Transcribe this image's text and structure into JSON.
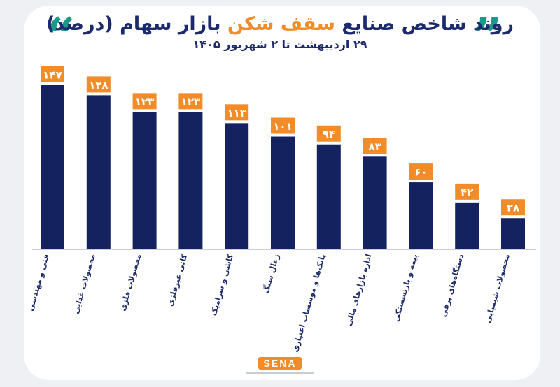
{
  "header": {
    "title_part1": "روند شاخص صنایع ",
    "title_highlight": "سقف شکن",
    "title_part2": " بازار سهام (درصد)",
    "subtitle": "۲۹ اردیبهشت تا ۲ شهریور ۱۴۰۵",
    "quote_open": "“",
    "quote_close": "”"
  },
  "logo": {
    "text": "SENA"
  },
  "colors": {
    "bar": "#14235f",
    "label_bg": "#f28c28",
    "accent": "#f28c28",
    "quote": "#1a9a8a",
    "title": "#1d2a6b"
  },
  "chart_data": {
    "type": "bar",
    "title": "روند شاخص صنایع سقف شکن بازار سهام (درصد)",
    "subtitle": "۲۹ اردیبهشت تا ۲ شهریور ۱۴۰۵",
    "categories": [
      "فنی و مهندسی",
      "محصولات غذایی",
      "محصولات فلزی",
      "کانی غیرفلزی",
      "کاشی و سرامیک",
      "زغال سنگ",
      "بانک‌ها و موسسات اعتباری",
      "اداره بازارهای مالی",
      "بیمه و بازنشستگی",
      "دستگاه‌های برقی",
      "محصولات شیمیایی"
    ],
    "values": [
      147,
      138,
      123,
      123,
      113,
      101,
      94,
      83,
      60,
      42,
      28
    ],
    "value_labels": [
      "۱۴۷",
      "۱۳۸",
      "۱۲۳",
      "۱۲۳",
      "۱۱۳",
      "۱۰۱",
      "۹۴",
      "۸۳",
      "۶۰",
      "۴۲",
      "۲۸"
    ],
    "ylim": [
      0,
      147
    ],
    "grid": false,
    "legend": "none"
  }
}
